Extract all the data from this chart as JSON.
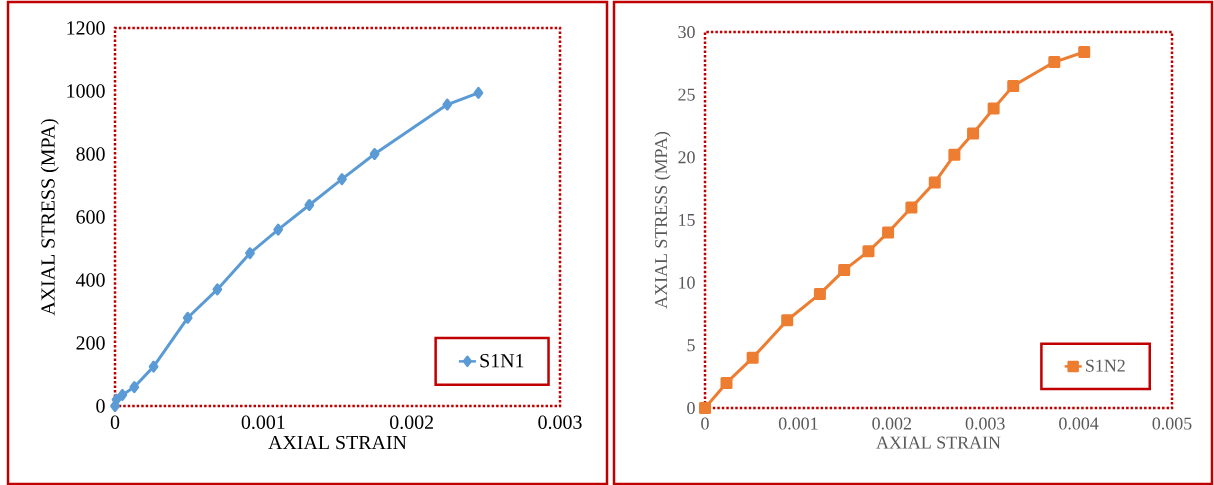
{
  "chart_data": [
    {
      "type": "line",
      "xlabel": "AXIAL STRAIN",
      "ylabel": "AXIAL STRESS (MPA)",
      "xlim": [
        0,
        0.003
      ],
      "ylim": [
        0,
        1200
      ],
      "xticks": [
        0,
        0.001,
        0.002,
        0.003
      ],
      "yticks": [
        0,
        200,
        400,
        600,
        800,
        1000,
        1200
      ],
      "marker": "diamond",
      "legend": "bottom right",
      "series": [
        {
          "name": "S1N1",
          "color": "#5b9bd5",
          "x": [
            0,
            1e-05,
            5e-05,
            0.00013,
            0.00026,
            0.00049,
            0.00069,
            0.00091,
            0.0011,
            0.00131,
            0.00153,
            0.00175,
            0.00224,
            0.00245
          ],
          "values": [
            0,
            20,
            35,
            60,
            125,
            280,
            370,
            485,
            560,
            638,
            720,
            800,
            957,
            994
          ]
        }
      ]
    },
    {
      "type": "line",
      "xlabel": "AXIAL STRAIN",
      "ylabel": "AXIAL STRESS (MPA)",
      "xlim": [
        0,
        0.005
      ],
      "ylim": [
        0,
        30
      ],
      "xticks": [
        0,
        0.001,
        0.002,
        0.003,
        0.004,
        0.005
      ],
      "yticks": [
        0,
        5,
        10,
        15,
        20,
        25,
        30
      ],
      "marker": "square",
      "legend": "bottom right",
      "series": [
        {
          "name": "S1N2",
          "color": "#ed7d31",
          "x": [
            0,
            0.00023,
            0.00051,
            0.00088,
            0.00123,
            0.00149,
            0.00175,
            0.00196,
            0.00221,
            0.00246,
            0.00267,
            0.00287,
            0.00309,
            0.0033,
            0.00374,
            0.00406
          ],
          "values": [
            0,
            2,
            4,
            7,
            9.1,
            11,
            12.5,
            14,
            16,
            18,
            20.2,
            21.9,
            23.9,
            25.7,
            27.6,
            28.4
          ]
        }
      ]
    }
  ]
}
